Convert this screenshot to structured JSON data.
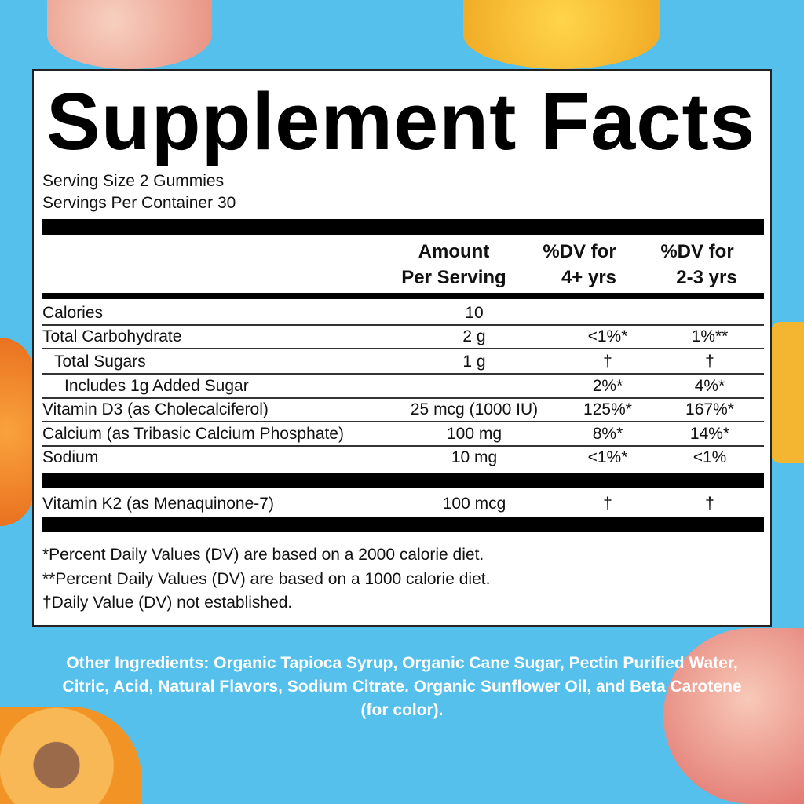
{
  "title": "Supplement Facts",
  "serving_size": "Serving Size 2 Gummies",
  "servings_per_container": "Servings Per Container 30",
  "headers": {
    "amount": [
      "Amount",
      "Per Serving"
    ],
    "dv1": [
      "%DV for",
      "4+ yrs"
    ],
    "dv2": [
      "%DV for",
      "2-3 yrs"
    ]
  },
  "rows": [
    {
      "name": "Calories",
      "amount": "10",
      "dv1": "",
      "dv2": ""
    },
    {
      "name": "Total Carbohydrate",
      "amount": "2 g",
      "dv1": "<1%*",
      "dv2": "1%**"
    },
    {
      "name": "Total Sugars",
      "amount": "1 g",
      "dv1": "†",
      "dv2": "†"
    },
    {
      "name": "Includes 1g Added Sugar",
      "amount": "",
      "dv1": "2%*",
      "dv2": "4%*"
    },
    {
      "name": "Vitamin D3 (as Cholecalciferol)",
      "amount": "25 mcg (1000 IU)",
      "dv1": "125%*",
      "dv2": "167%*"
    },
    {
      "name": "Calcium (as Tribasic Calcium Phosphate)",
      "amount": "100 mg",
      "dv1": "8%*",
      "dv2": "14%*"
    },
    {
      "name": "Sodium",
      "amount": "10 mg",
      "dv1": "<1%*",
      "dv2": "<1%"
    },
    {
      "name": "Vitamin K2 (as Menaquinone-7)",
      "amount": "100 mcg",
      "dv1": "†",
      "dv2": "†"
    }
  ],
  "footnotes": [
    "*Percent Daily Values (DV) are based on a 2000 calorie diet.",
    "**Percent Daily Values (DV) are based on a 1000 calorie diet.",
    "†Daily Value (DV) not established."
  ],
  "other_ingredients": "Other Ingredients: Organic Tapioca Syrup, Organic Cane Sugar, Pectin Purified Water, Citric, Acid, Natural Flavors, Sodium Citrate. Organic Sunflower Oil, and Beta Carotene (for color).",
  "colors": {
    "background": "#55c0eb",
    "panel": "#ffffff",
    "text": "#000000"
  }
}
